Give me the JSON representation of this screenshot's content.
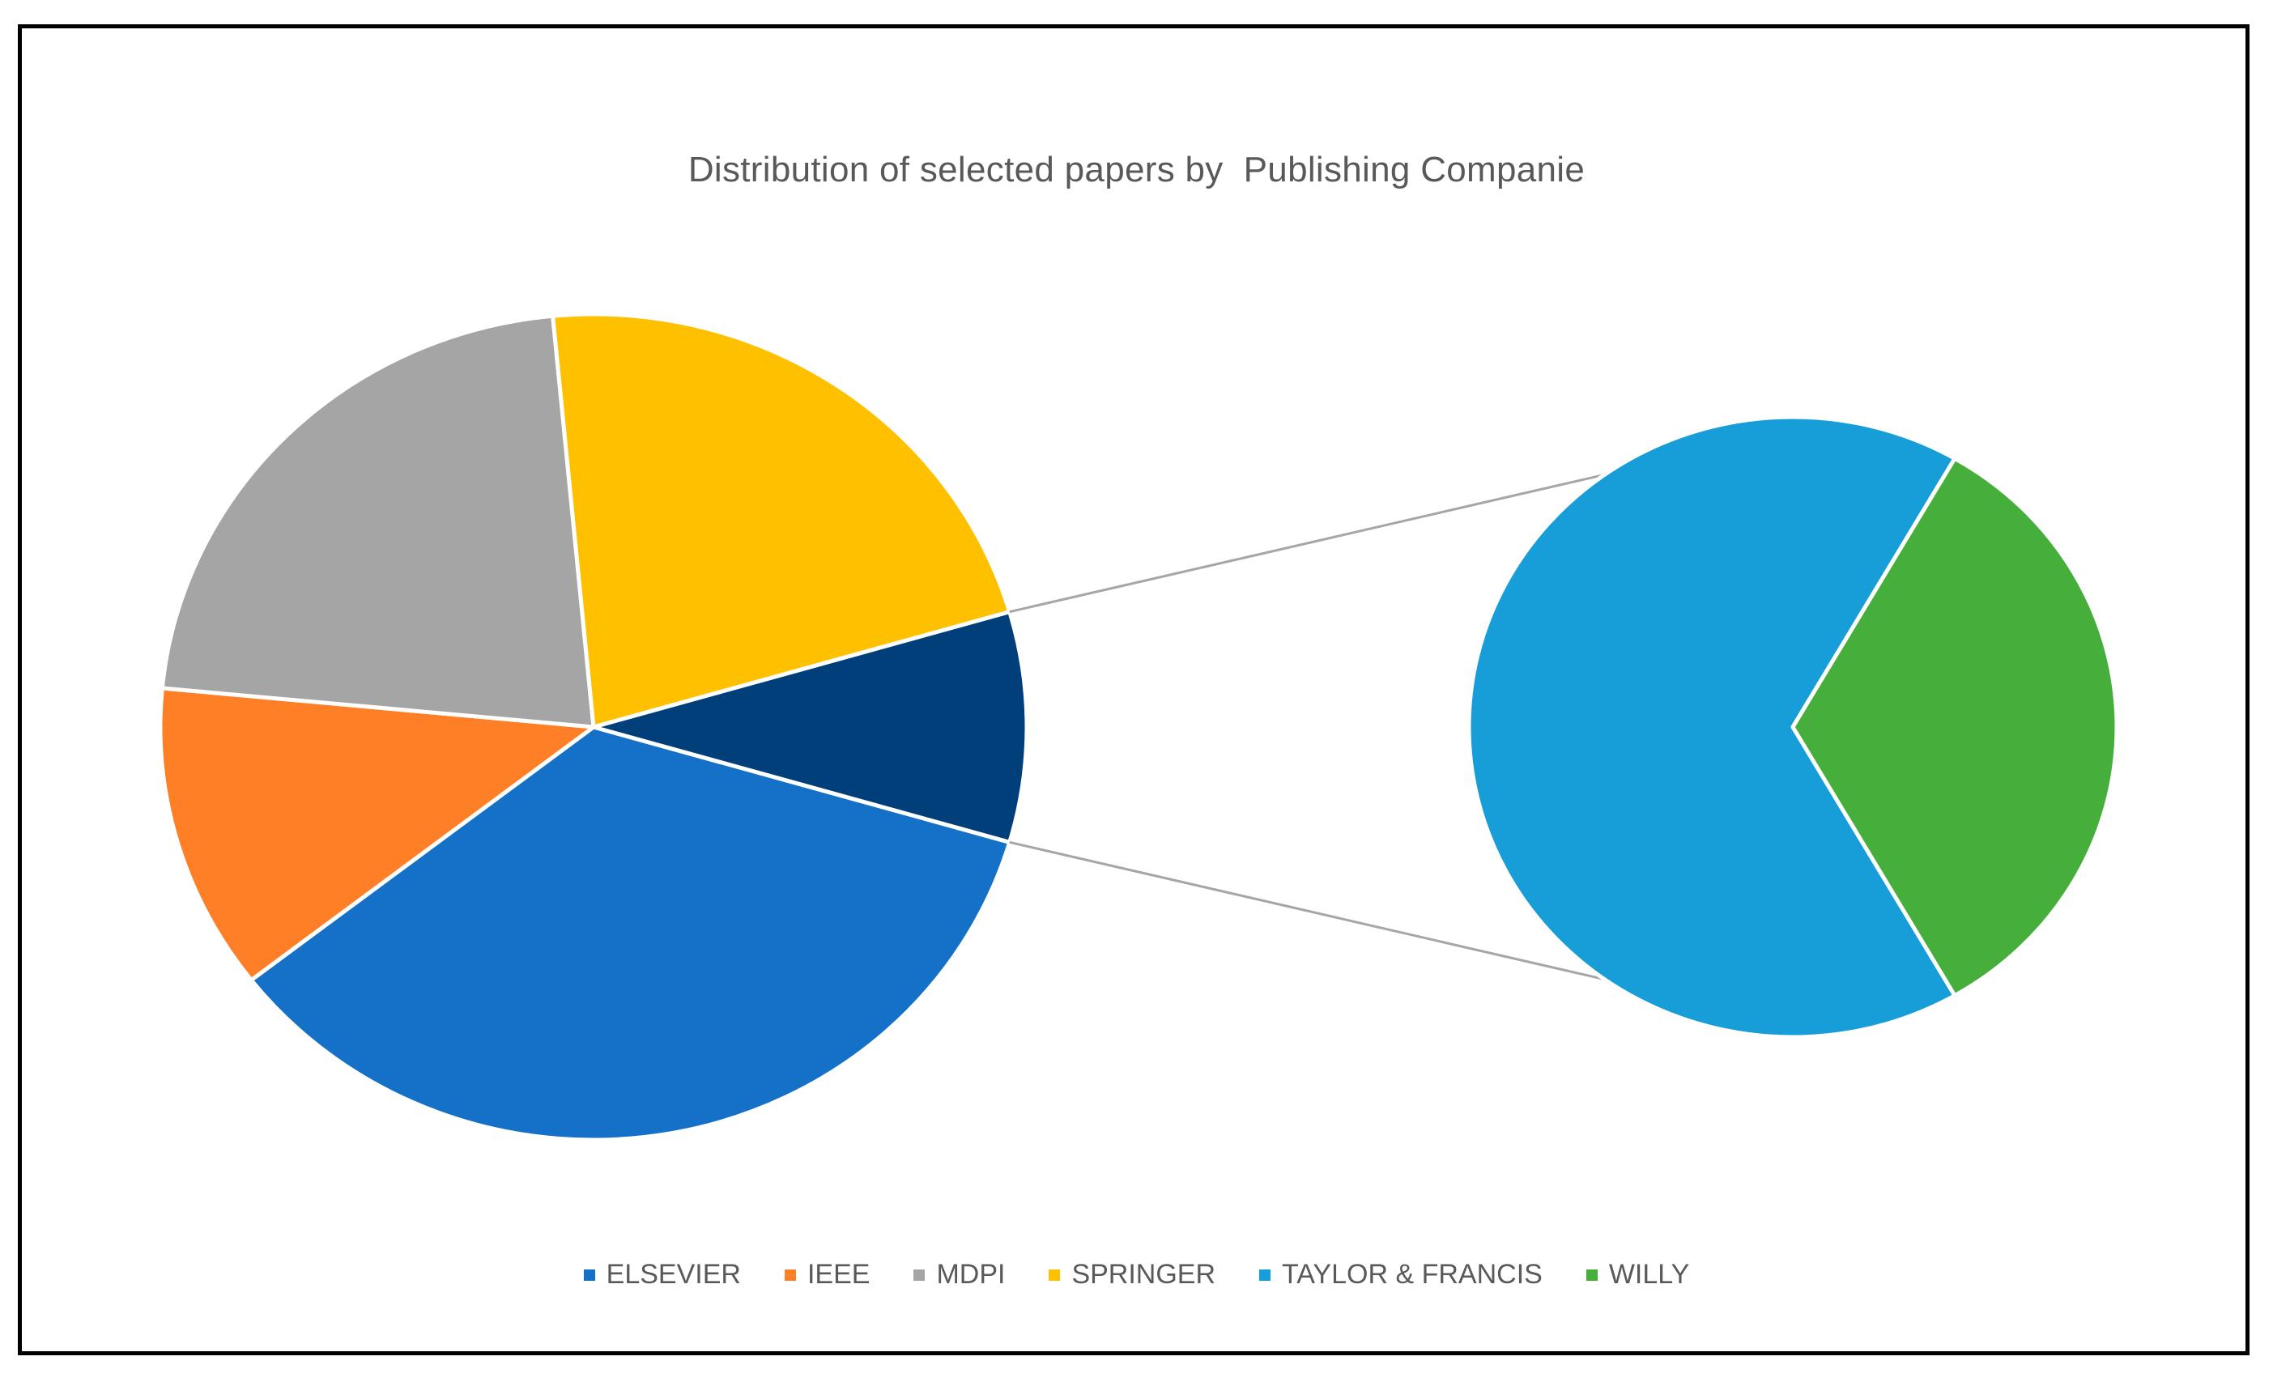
{
  "chart_data": {
    "type": "pie",
    "subtype": "pie-of-pie",
    "title": "Distribution of selected papers by  Publishing Companie",
    "categories": [
      "ELSEVIER",
      "IEEE",
      "MDPI",
      "SPRINGER",
      "TAYLOR & FRANCIS",
      "WILLY"
    ],
    "values": [
      35,
      12,
      22,
      22,
      6,
      3
    ],
    "colors": [
      "#1570C8",
      "#FF7F27",
      "#A5A5A5",
      "#FFC000",
      "#179ED8",
      "#46AF3C"
    ],
    "secondary_pie": {
      "categories": [
        "TAYLOR & FRANCIS",
        "WILLY"
      ],
      "combined_color": "#003F7A"
    },
    "legend_position": "bottom"
  }
}
